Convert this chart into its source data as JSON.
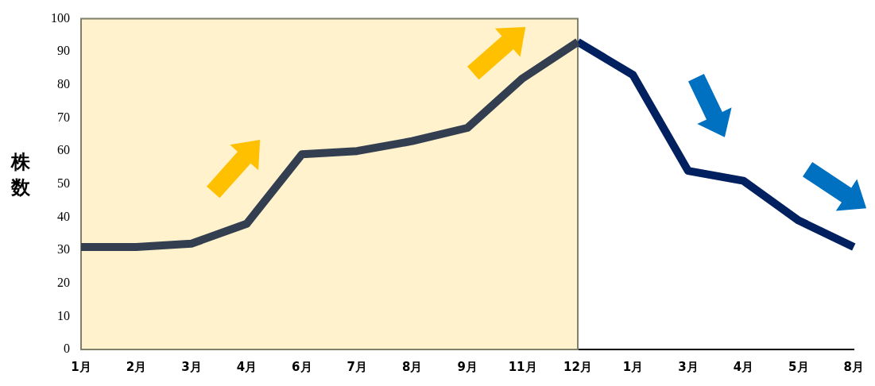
{
  "chart_data": {
    "type": "line",
    "ylabel": "株数",
    "categories": [
      "1月",
      "2月",
      "3月",
      "4月",
      "6月",
      "7月",
      "8月",
      "9月",
      "11月",
      "12月",
      "1月",
      "3月",
      "4月",
      "5月",
      "8月"
    ],
    "series": [
      {
        "color": "#333f50",
        "values": [
          31,
          31,
          32,
          38,
          59,
          60,
          63,
          67,
          82,
          93,
          null,
          null,
          null,
          null,
          null
        ]
      },
      {
        "color": "#002060",
        "values": [
          null,
          null,
          null,
          null,
          null,
          null,
          null,
          null,
          null,
          93,
          83,
          54,
          51,
          39,
          31
        ]
      }
    ],
    "ylim": [
      0,
      100
    ],
    "yticks": [
      0,
      10,
      20,
      30,
      40,
      50,
      60,
      70,
      80,
      90,
      100
    ],
    "bands": [
      {
        "axis": "x",
        "from": "1月",
        "to": "12月",
        "color": "#fff2cc"
      }
    ],
    "grid": false,
    "marker": "none",
    "legend": false
  }
}
